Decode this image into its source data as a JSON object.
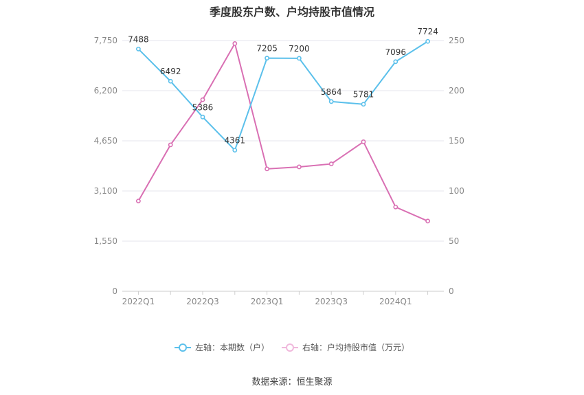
{
  "chart_data": {
    "type": "line",
    "title": "季度股东户数、户均持股市值情况",
    "categories": [
      "2022Q1",
      "2022Q2",
      "2022Q3",
      "2022Q4",
      "2023Q1",
      "2023Q2",
      "2023Q3",
      "2023Q4",
      "2024Q1",
      "2024Q2"
    ],
    "x_tick_labels": [
      "2022Q1",
      "2022Q3",
      "2023Q1",
      "2023Q3",
      "2024Q1"
    ],
    "left_axis": {
      "min": 0,
      "max": 7750,
      "ticks": [
        "0",
        "1,550",
        "3,100",
        "4,650",
        "6,200",
        "7,750"
      ]
    },
    "right_axis": {
      "min": 0,
      "max": 250,
      "ticks": [
        "0",
        "50",
        "100",
        "150",
        "200",
        "250"
      ]
    },
    "series": [
      {
        "name": "左轴：本期数（户）",
        "axis": "left",
        "color": "#5bc0eb",
        "values": [
          7488,
          6492,
          5386,
          4361,
          7205,
          7200,
          5864,
          5781,
          7096,
          7724
        ],
        "labels": [
          "7488",
          "6492",
          "5386",
          "4361",
          "7205",
          "7200",
          "5864",
          "5781",
          "7096",
          "7724"
        ]
      },
      {
        "name": "右轴：户均持股市值（万元）",
        "axis": "right",
        "color": "#d96fb3",
        "values": [
          90,
          146,
          191,
          247,
          122,
          124,
          127,
          149,
          84,
          70
        ]
      }
    ],
    "grid": true,
    "legend_position": "bottom"
  },
  "source": "数据来源：恒生聚源"
}
